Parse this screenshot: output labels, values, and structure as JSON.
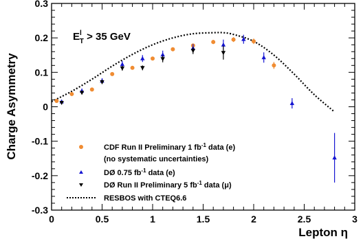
{
  "chart_data": {
    "type": "scatter",
    "xlabel": "Lepton η",
    "ylabel": "Charge Asymmetry",
    "xlim": [
      0,
      3.0
    ],
    "ylim": [
      -0.3,
      0.3
    ],
    "x_ticks": [
      0,
      0.5,
      1,
      1.5,
      2,
      2.5,
      3
    ],
    "x_tick_labels": [
      "0",
      "0.5",
      "1",
      "1.5",
      "2",
      "2.5",
      "3"
    ],
    "y_ticks": [
      -0.3,
      -0.2,
      -0.1,
      0,
      0.1,
      0.2,
      0.3
    ],
    "y_tick_labels": [
      "-0.3",
      "-0.2",
      "-0.1",
      "0",
      "0.1",
      "0.2",
      "0.3"
    ],
    "annotation": {
      "main": "E",
      "sup": "l",
      "sub": "T",
      "rest": " > 35 GeV"
    },
    "legend_position": "bottom-left",
    "series": [
      {
        "name": "CDF Run II Preliminary 1 fb-1 data (e)",
        "name_parts": [
          "CDF Run II Preliminary 1 fb",
          "-1",
          " data (e)"
        ],
        "name_line2": "(no systematic uncertainties)",
        "marker": "circle",
        "color": "#f08c32",
        "x": [
          0.05,
          0.2,
          0.4,
          0.6,
          0.8,
          1.0,
          1.2,
          1.4,
          1.6,
          1.8,
          2.0,
          2.2
        ],
        "y": [
          0.017,
          0.037,
          0.05,
          0.095,
          0.113,
          0.14,
          0.167,
          0.178,
          0.188,
          0.195,
          0.19,
          0.12
        ],
        "err": [
          0.003,
          0.003,
          0.004,
          0.004,
          0.004,
          0.005,
          0.005,
          0.005,
          0.006,
          0.007,
          0.008,
          0.01
        ]
      },
      {
        "name": "DØ 0.75 fb-1 data (e)",
        "name_parts": [
          "DØ 0.75 fb",
          "-1",
          " data (e)"
        ],
        "marker": "triangle-up",
        "color": "#1414d2",
        "x": [
          0.1,
          0.3,
          0.5,
          0.7,
          0.9,
          1.1,
          1.4,
          1.7,
          1.9,
          2.1,
          2.38,
          2.8
        ],
        "y": [
          0.015,
          0.046,
          0.075,
          0.123,
          0.14,
          0.151,
          0.17,
          0.18,
          0.196,
          0.143,
          0.01,
          -0.148
        ],
        "err": [
          0.004,
          0.007,
          0.008,
          0.01,
          0.01,
          0.012,
          0.012,
          0.015,
          0.013,
          0.015,
          0.015,
          0.072
        ]
      },
      {
        "name": "DØ Run II Preliminary 5 fb-1 data (μ)",
        "name_parts": [
          "DØ Run II Preliminary 5 fb",
          "-1",
          " data (μ)"
        ],
        "marker": "triangle-down",
        "color": "#000000",
        "x": [
          0.1,
          0.3,
          0.5,
          0.7,
          0.9,
          1.1,
          1.4,
          1.7
        ],
        "y": [
          0.012,
          0.041,
          0.072,
          0.112,
          0.113,
          0.139,
          0.163,
          0.157
        ],
        "err": [
          0.004,
          0.005,
          0.006,
          0.007,
          0.007,
          0.01,
          0.01,
          0.02
        ]
      },
      {
        "name": "RESBOS with CTEQ6.6",
        "type": "line",
        "style": "dotted",
        "color": "#000000",
        "x": [
          0.0,
          0.2,
          0.4,
          0.6,
          0.8,
          1.0,
          1.2,
          1.4,
          1.6,
          1.7,
          1.8,
          2.0,
          2.2,
          2.4,
          2.6,
          2.8
        ],
        "y": [
          0.015,
          0.045,
          0.08,
          0.118,
          0.152,
          0.18,
          0.2,
          0.212,
          0.215,
          0.215,
          0.21,
          0.19,
          0.15,
          0.095,
          0.035,
          -0.015
        ]
      }
    ]
  }
}
